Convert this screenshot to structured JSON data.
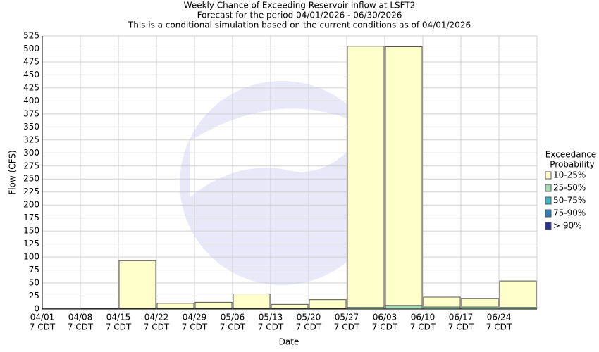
{
  "chart_data": {
    "type": "bar",
    "title": [
      "Weekly Chance of Exceeding Reservoir inflow at LSFT2",
      "Forecast for the period 04/01/2026 - 06/30/2026",
      "This is a conditional simulation based on the current conditions as of 04/01/2026"
    ],
    "x_label": "Date",
    "y_label": "Flow (CFS)",
    "categories": [
      "04/01",
      "04/08",
      "04/15",
      "04/22",
      "04/29",
      "05/06",
      "05/13",
      "05/20",
      "05/27",
      "06/03",
      "06/10",
      "06/17",
      "06/24"
    ],
    "category_sublabel": "7 CDT",
    "series": [
      {
        "name": "10-25%",
        "color": "#ffffcc",
        "values": [
          0.5,
          1,
          93,
          11,
          13,
          29,
          9,
          18,
          505,
          504,
          23,
          20,
          54
        ]
      },
      {
        "name": "25-50%",
        "color": "#a1dab4",
        "values": [
          0,
          0.5,
          1,
          1,
          1,
          1,
          1,
          1,
          3,
          7,
          4,
          4,
          3
        ]
      },
      {
        "name": "50-75%",
        "color": "#41b6c4",
        "values": [
          0,
          0,
          0,
          0,
          0,
          0,
          0,
          0,
          0,
          0,
          0,
          0,
          0
        ]
      },
      {
        "name": "75-90%",
        "color": "#2c7fb8",
        "values": [
          0,
          0,
          0,
          0,
          0,
          0,
          0,
          0,
          0,
          0,
          0,
          0,
          0
        ]
      },
      {
        "name": "> 90%",
        "color": "#253494",
        "values": [
          0,
          0,
          0,
          0,
          0,
          0,
          0,
          0,
          0,
          0,
          0,
          0,
          0
        ]
      }
    ],
    "legend_title": [
      "Exceedance",
      "Probability"
    ],
    "ylim": [
      0,
      525
    ],
    "yticks": [
      0,
      25,
      50,
      75,
      100,
      125,
      150,
      175,
      200,
      225,
      250,
      275,
      300,
      325,
      350,
      375,
      400,
      425,
      450,
      475,
      500,
      525
    ],
    "grid": true
  }
}
